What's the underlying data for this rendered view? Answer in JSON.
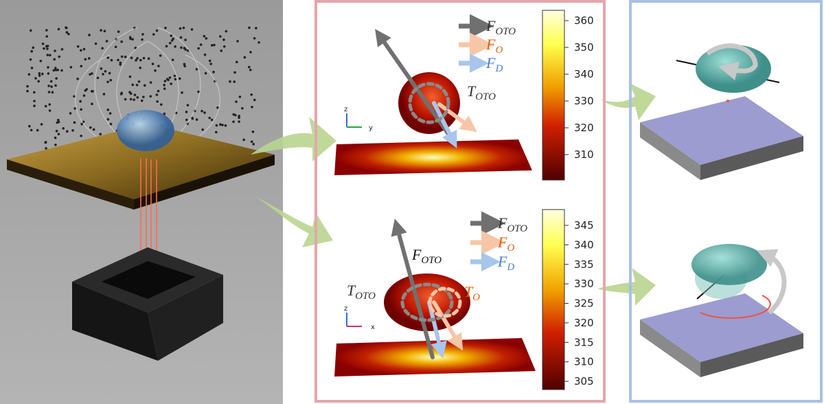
{
  "panels": {
    "top": {
      "legend": [
        {
          "symbol": "F",
          "sub": "OTO"
        },
        {
          "symbol": "F",
          "sub": "O"
        },
        {
          "symbol": "F",
          "sub": "D"
        }
      ],
      "torque": {
        "symbol": "T",
        "sub": "OTO"
      },
      "axes": [
        "z",
        "y"
      ],
      "colorbar": [
        "360",
        "350",
        "340",
        "330",
        "320",
        "310"
      ]
    },
    "bottom": {
      "legend": [
        {
          "symbol": "F",
          "sub": "OTO"
        },
        {
          "symbol": "F",
          "sub": "O"
        },
        {
          "symbol": "F",
          "sub": "D"
        }
      ],
      "force": {
        "symbol": "F",
        "sub": "OTO"
      },
      "torques": [
        {
          "symbol": "T",
          "sub": "OTO"
        },
        {
          "symbol": "T",
          "sub": "O"
        }
      ],
      "axes": [
        "z",
        "x"
      ],
      "colorbar": [
        "345",
        "340",
        "335",
        "330",
        "325",
        "320",
        "315",
        "310",
        "305"
      ]
    }
  }
}
